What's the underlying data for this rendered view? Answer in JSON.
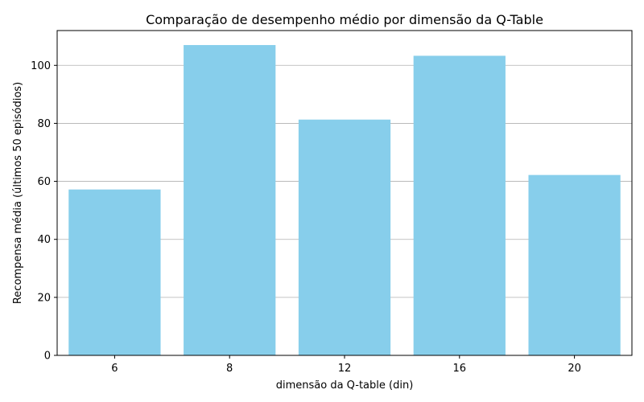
{
  "chart_data": {
    "type": "bar",
    "title": "Comparação de desempenho médio por dimensão da Q-Table",
    "xlabel": "dimensão da Q-table (din)",
    "ylabel": "Recompensa média (últimos 50 episódios)",
    "categories": [
      "6",
      "8",
      "12",
      "16",
      "20"
    ],
    "values": [
      57.2,
      107.0,
      81.3,
      103.3,
      62.2
    ],
    "ylim": [
      0,
      112
    ],
    "yticks": [
      0,
      20,
      40,
      60,
      80,
      100
    ],
    "grid": "y",
    "bar_color": "#87CEEB",
    "grid_color": "#b0b0b0",
    "axis_color": "#000000"
  }
}
